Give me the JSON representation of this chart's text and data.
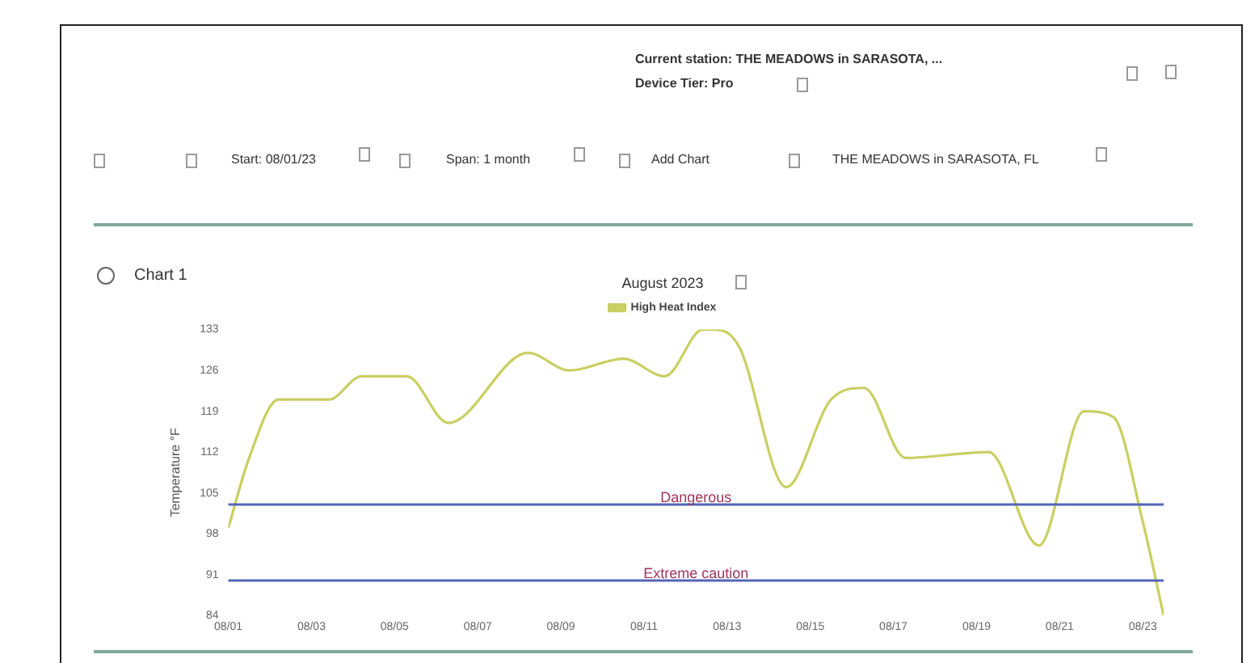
{
  "chart_data": {
    "type": "line",
    "title": "August 2023",
    "ylabel": "Temperature °F",
    "x": [
      "2023-08-01",
      "2023-08-01T12:00",
      "2023-08-02T05:00",
      "2023-08-03T10:00",
      "2023-08-04T05:00",
      "2023-08-05T07:00",
      "2023-08-06T07:00",
      "2023-08-08T05:00",
      "2023-08-09T05:00",
      "2023-08-10T12:00",
      "2023-08-11T12:00",
      "2023-08-12T10:00",
      "2023-08-12T17:00",
      "2023-08-13T07:00",
      "2023-08-14T10:00",
      "2023-08-15T12:00",
      "2023-08-16T07:00",
      "2023-08-17T07:00",
      "2023-08-19T07:00",
      "2023-08-20T12:00",
      "2023-08-21T14:00",
      "2023-08-22T07:00",
      "2023-08-23",
      "2023-08-23T12:00"
    ],
    "series": [
      {
        "name": "High Heat Index",
        "color": "#c9cf62",
        "values": [
          99,
          111,
          121,
          121,
          125,
          125,
          117,
          129,
          126,
          128,
          125,
          133,
          133,
          130,
          106,
          121,
          123,
          111,
          112,
          96,
          119,
          118,
          100,
          84
        ]
      }
    ],
    "xlim": [
      "2023-08-01",
      "2023-08-23T12:00"
    ],
    "xticks": [
      {
        "value": "2023-08-01",
        "label": "08/01"
      },
      {
        "value": "2023-08-03",
        "label": "08/03"
      },
      {
        "value": "2023-08-05",
        "label": "08/05"
      },
      {
        "value": "2023-08-07",
        "label": "08/07"
      },
      {
        "value": "2023-08-09",
        "label": "08/09"
      },
      {
        "value": "2023-08-11",
        "label": "08/11"
      },
      {
        "value": "2023-08-13",
        "label": "08/13"
      },
      {
        "value": "2023-08-15",
        "label": "08/15"
      },
      {
        "value": "2023-08-17",
        "label": "08/17"
      },
      {
        "value": "2023-08-19",
        "label": "08/19"
      },
      {
        "value": "2023-08-21",
        "label": "08/21"
      },
      {
        "value": "2023-08-23",
        "label": "08/23"
      }
    ],
    "ylim": [
      84,
      133
    ],
    "yticks": [
      84,
      91,
      98,
      105,
      112,
      119,
      126,
      133
    ],
    "ref_lines": [
      {
        "axis": "y",
        "value": 103,
        "label": "Dangerous",
        "color": "#5566b8"
      },
      {
        "axis": "y",
        "value": 90,
        "label": "Extreme caution",
        "color": "#5566b8"
      }
    ],
    "legend": "top",
    "grid": false,
    "marker": "none",
    "line_style": "solid",
    "annotations": [
      "Current station: THE MEADOWS in SARASOTA, ...",
      "Device Tier: Pro",
      "Start: 08/01/23",
      "Span: 1 month",
      "Add Chart",
      "THE MEADOWS in SARASOTA, FL",
      "Chart 1"
    ]
  }
}
